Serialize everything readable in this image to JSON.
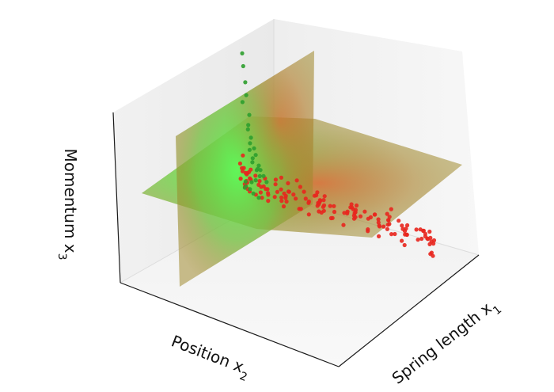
{
  "chart_data": {
    "type": "scatter",
    "projection": "3d",
    "title": "",
    "xlabel_text": "Spring length x",
    "xlabel_sub": "1",
    "ylabel_text": "Position x",
    "ylabel_sub": "2",
    "zlabel_text": "Momentum x",
    "zlabel_sub": "3",
    "tick_labels": "none",
    "grid": false,
    "legend": "none",
    "xlim": [
      0,
      1
    ],
    "ylim": [
      0,
      1
    ],
    "zlim": [
      0,
      1
    ],
    "decision_planes": [
      {
        "normal_axis": "y",
        "value": 0.3,
        "color": "#a08a30"
      },
      {
        "normal_axis": "z",
        "value": 0.5,
        "color": "#a08a30"
      }
    ],
    "colors": {
      "positive_class": "#2e9e2e",
      "negative_class": "#e8261e",
      "plane_tint": "#a08a30",
      "plane_glow_green": "#5cff5c",
      "plane_glow_red": "#ff4020",
      "pane_light": "#f7f7f7",
      "pane_dark": "#ececec",
      "frame": "#1a1a1a"
    },
    "series": [
      {
        "class": "green",
        "color": "#2e9e2e",
        "x": [
          0.02,
          0.03,
          0.03,
          0.04,
          0.03,
          0.05,
          0.04,
          0.05,
          0.06,
          0.05,
          0.07,
          0.06,
          0.08,
          0.07,
          0.06,
          0.09,
          0.08,
          0.1,
          0.09,
          0.11,
          0.1,
          0.12,
          0.08,
          0.06,
          0.04,
          0.03,
          0.05,
          0.04,
          0.07,
          0.09
        ],
        "y": [
          0.3,
          0.32,
          0.29,
          0.31,
          0.33,
          0.3,
          0.28,
          0.32,
          0.31,
          0.29,
          0.3,
          0.33,
          0.31,
          0.32,
          0.29,
          0.3,
          0.28,
          0.31,
          0.33,
          0.3,
          0.32,
          0.29,
          0.31,
          0.3,
          0.32,
          0.28,
          0.29,
          0.33,
          0.31,
          0.3
        ],
        "z": [
          0.98,
          0.92,
          0.86,
          0.8,
          0.76,
          0.72,
          0.68,
          0.65,
          0.62,
          0.6,
          0.58,
          0.56,
          0.55,
          0.53,
          0.52,
          0.51,
          0.5,
          0.49,
          0.48,
          0.47,
          0.46,
          0.45,
          0.44,
          0.43,
          0.42,
          0.41,
          0.4,
          0.39,
          0.38,
          0.37
        ]
      },
      {
        "class": "red",
        "color": "#e8261e",
        "x": [
          0.04,
          0.06,
          0.08,
          0.1,
          0.12,
          0.14,
          0.16,
          0.18,
          0.2,
          0.22,
          0.25,
          0.28,
          0.3,
          0.33,
          0.36,
          0.4,
          0.44,
          0.48,
          0.52,
          0.56,
          0.6,
          0.64,
          0.68,
          0.72,
          0.76,
          0.8,
          0.84,
          0.88,
          0.92,
          0.96,
          0.05,
          0.09,
          0.13,
          0.17,
          0.21,
          0.26,
          0.31,
          0.35,
          0.39,
          0.43,
          0.47,
          0.51,
          0.55,
          0.59,
          0.63,
          0.67,
          0.71,
          0.75,
          0.79,
          0.83,
          0.87,
          0.91,
          0.95,
          0.98,
          0.07,
          0.11,
          0.15,
          0.19,
          0.23,
          0.27,
          0.32,
          0.37,
          0.41,
          0.45,
          0.49,
          0.53,
          0.57,
          0.61,
          0.65,
          0.69,
          0.73,
          0.77,
          0.81,
          0.85,
          0.89,
          0.93,
          0.97,
          0.03,
          0.08,
          0.12,
          0.18,
          0.24,
          0.29,
          0.34,
          0.38,
          0.42,
          0.46,
          0.5,
          0.54,
          0.58,
          0.62,
          0.66,
          0.7,
          0.74,
          0.78,
          0.82,
          0.86,
          0.9,
          0.94,
          0.06,
          0.1,
          0.14,
          0.2,
          0.26,
          0.3,
          0.36,
          0.42,
          0.48,
          0.54,
          0.6,
          0.66,
          0.72,
          0.78,
          0.84,
          0.9,
          0.96,
          0.02,
          0.05,
          0.09,
          0.13,
          0.17,
          0.22,
          0.27,
          0.33,
          0.39,
          0.45,
          0.51,
          0.57,
          0.63,
          0.69,
          0.75,
          0.81,
          0.87,
          0.93,
          0.99,
          0.04,
          0.11,
          0.16,
          0.23,
          0.28,
          0.35,
          0.41,
          0.47,
          0.53,
          0.59,
          0.65,
          0.71,
          0.77,
          0.83,
          0.89,
          0.95
        ],
        "y": [
          0.32,
          0.36,
          0.4,
          0.3,
          0.45,
          0.34,
          0.5,
          0.38,
          0.55,
          0.42,
          0.35,
          0.6,
          0.44,
          0.52,
          0.38,
          0.65,
          0.46,
          0.58,
          0.4,
          0.7,
          0.48,
          0.62,
          0.36,
          0.74,
          0.54,
          0.44,
          0.78,
          0.5,
          0.66,
          0.82,
          0.4,
          0.48,
          0.56,
          0.33,
          0.62,
          0.45,
          0.7,
          0.52,
          0.38,
          0.76,
          0.58,
          0.42,
          0.8,
          0.64,
          0.48,
          0.72,
          0.56,
          0.84,
          0.6,
          0.46,
          0.88,
          0.68,
          0.74,
          0.9,
          0.35,
          0.42,
          0.5,
          0.58,
          0.36,
          0.66,
          0.44,
          0.74,
          0.52,
          0.6,
          0.82,
          0.4,
          0.68,
          0.56,
          0.86,
          0.64,
          0.48,
          0.78,
          0.7,
          0.58,
          0.92,
          0.76,
          0.84,
          0.31,
          0.46,
          0.54,
          0.62,
          0.7,
          0.39,
          0.78,
          0.47,
          0.55,
          0.86,
          0.63,
          0.51,
          0.71,
          0.9,
          0.59,
          0.79,
          0.67,
          0.94,
          0.75,
          0.83,
          0.62,
          0.88,
          0.34,
          0.52,
          0.68,
          0.44,
          0.76,
          0.6,
          0.84,
          0.5,
          0.72,
          0.92,
          0.66,
          0.8,
          0.58,
          0.88,
          0.74,
          0.96,
          0.82,
          0.33,
          0.41,
          0.57,
          0.65,
          0.49,
          0.73,
          0.37,
          0.81,
          0.53,
          0.69,
          0.89,
          0.61,
          0.77,
          0.45,
          0.85,
          0.93,
          0.71,
          0.79,
          0.87,
          0.36,
          0.54,
          0.72,
          0.46,
          0.64,
          0.82,
          0.56,
          0.74,
          0.92,
          0.66,
          0.84,
          0.58,
          0.76,
          0.94,
          0.68,
          0.86
        ],
        "z": [
          0.4,
          0.38,
          0.36,
          0.42,
          0.34,
          0.39,
          0.32,
          0.37,
          0.3,
          0.35,
          0.41,
          0.28,
          0.33,
          0.31,
          0.38,
          0.26,
          0.32,
          0.29,
          0.36,
          0.24,
          0.3,
          0.27,
          0.35,
          0.22,
          0.28,
          0.33,
          0.2,
          0.26,
          0.23,
          0.18,
          0.44,
          0.41,
          0.37,
          0.46,
          0.33,
          0.39,
          0.31,
          0.36,
          0.43,
          0.28,
          0.34,
          0.4,
          0.26,
          0.32,
          0.38,
          0.29,
          0.35,
          0.24,
          0.31,
          0.37,
          0.22,
          0.28,
          0.25,
          0.2,
          0.47,
          0.43,
          0.39,
          0.35,
          0.45,
          0.32,
          0.41,
          0.29,
          0.37,
          0.33,
          0.27,
          0.42,
          0.3,
          0.36,
          0.25,
          0.32,
          0.38,
          0.27,
          0.29,
          0.34,
          0.21,
          0.26,
          0.23,
          0.48,
          0.42,
          0.38,
          0.34,
          0.31,
          0.44,
          0.28,
          0.4,
          0.36,
          0.26,
          0.33,
          0.39,
          0.3,
          0.24,
          0.35,
          0.28,
          0.32,
          0.21,
          0.29,
          0.26,
          0.33,
          0.22,
          0.46,
          0.37,
          0.3,
          0.41,
          0.27,
          0.35,
          0.24,
          0.38,
          0.29,
          0.22,
          0.33,
          0.27,
          0.36,
          0.23,
          0.3,
          0.2,
          0.25,
          0.49,
          0.45,
          0.36,
          0.32,
          0.41,
          0.28,
          0.47,
          0.26,
          0.38,
          0.31,
          0.22,
          0.35,
          0.29,
          0.43,
          0.25,
          0.21,
          0.3,
          0.27,
          0.23,
          0.52,
          0.4,
          0.31,
          0.44,
          0.34,
          0.26,
          0.39,
          0.3,
          0.21,
          0.33,
          0.25,
          0.37,
          0.28,
          0.19,
          0.31,
          0.24
        ]
      }
    ]
  }
}
